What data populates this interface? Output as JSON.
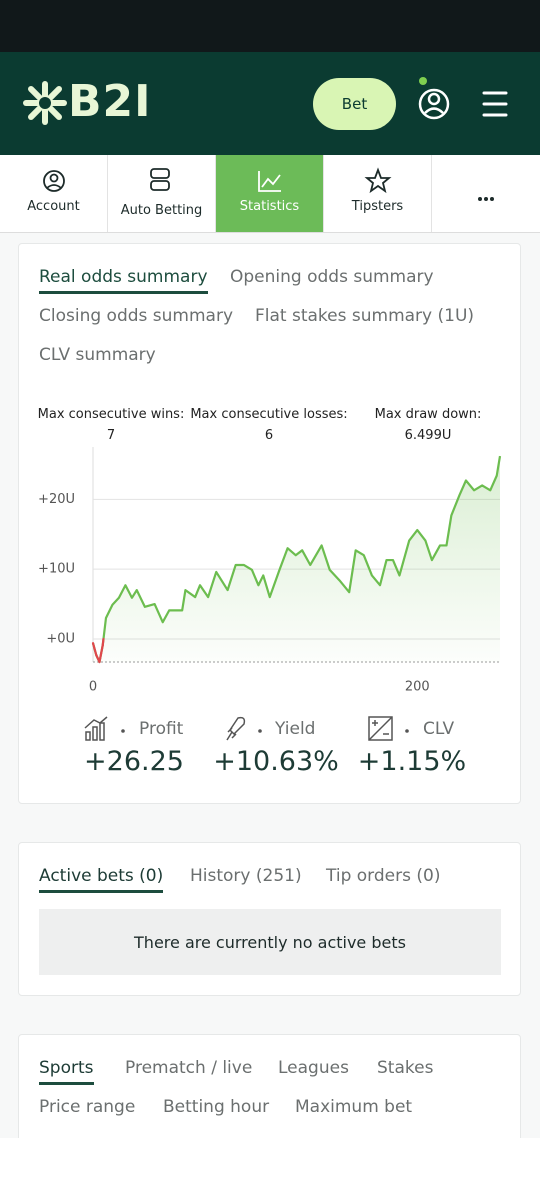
{
  "header": {
    "logo": "B2I",
    "bet_button": "Bet"
  },
  "nav": [
    "Account",
    "Auto Betting",
    "Statistics",
    "Tipsters"
  ],
  "summary_tabs": [
    "Real odds summary",
    "Opening odds summary",
    "Closing odds summary",
    "Flat stakes summary (1U)",
    "CLV summary"
  ],
  "streaks": [
    {
      "label": "Max consecutive wins:",
      "value": "7"
    },
    {
      "label": "Max consecutive losses:",
      "value": "6"
    },
    {
      "label": "Max draw down:",
      "value": "6.499U"
    }
  ],
  "chart_data": {
    "type": "line",
    "x": [
      0,
      2,
      4,
      6,
      8,
      12,
      16,
      20,
      24,
      27,
      32,
      38,
      43,
      47,
      55,
      57,
      63,
      66,
      71,
      76,
      83,
      88,
      93,
      98,
      102,
      105,
      109,
      115,
      120,
      125,
      129,
      134,
      141,
      146,
      152,
      158,
      162,
      167,
      172,
      177,
      181,
      185,
      189,
      195,
      200,
      205,
      209,
      214,
      218,
      221,
      226,
      230,
      235,
      240,
      245,
      249,
      251
    ],
    "series": [
      {
        "color": "#6cbd4f",
        "negative_color": "#e0474c",
        "values": [
          -0.6,
          -2.3,
          -3.3,
          -0.9,
          3,
          4.9,
          5.9,
          7.7,
          5.9,
          7,
          4.6,
          5,
          2.4,
          4.1,
          4.1,
          7,
          6,
          7.7,
          6,
          9.6,
          7,
          10.6,
          10.6,
          9.9,
          7.7,
          9.1,
          6,
          9.9,
          13,
          12,
          12.7,
          10.6,
          13.4,
          9.9,
          8.4,
          6.7,
          12.7,
          12,
          9.1,
          7.7,
          11.3,
          11.3,
          9.1,
          14.1,
          15.6,
          14.1,
          11.3,
          13.4,
          13.4,
          17.7,
          20.6,
          22.7,
          21.3,
          22,
          21.3,
          23.4,
          26.2
        ]
      }
    ],
    "xlim": [
      0,
      251
    ],
    "ylim": [
      -3.3,
      27.5
    ],
    "xticks": [
      0,
      200
    ],
    "yticks": [
      {
        "value": 0,
        "label": "+0U"
      },
      {
        "value": 10,
        "label": "+10U"
      },
      {
        "value": 20,
        "label": "+20U"
      }
    ],
    "grid": true
  },
  "metrics": [
    {
      "label": "Profit",
      "value": "+26.25"
    },
    {
      "label": "Yield",
      "value": "+10.63%"
    },
    {
      "label": "CLV",
      "value": "+1.15%"
    }
  ],
  "bets_tabs": [
    "Active bets (0)",
    "History (251)",
    "Tip orders (0)"
  ],
  "empty_message": "There are currently no active bets",
  "filter_tabs": [
    "Sports",
    "Prematch / live",
    "Leagues",
    "Stakes",
    "Price range",
    "Betting hour",
    "Maximum bet"
  ]
}
